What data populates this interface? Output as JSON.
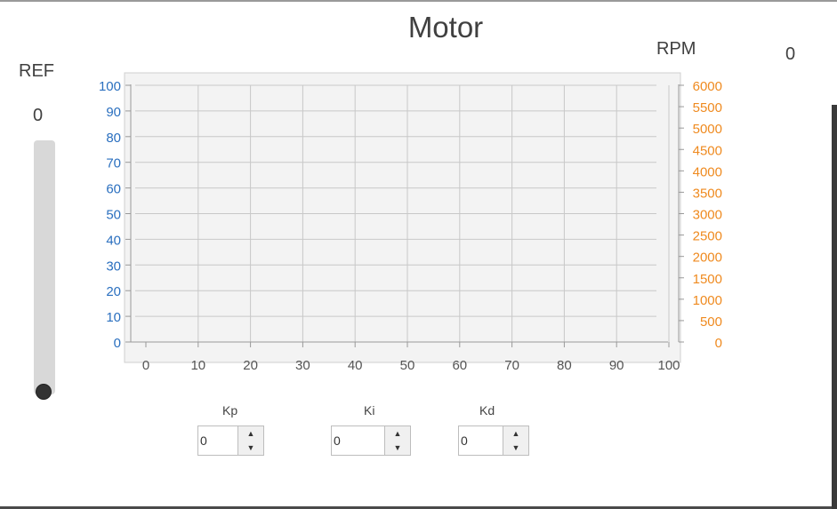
{
  "title": "Motor",
  "rpm": {
    "label": "RPM",
    "value": "0"
  },
  "ref": {
    "label": "REF",
    "value": "0",
    "slider_fraction": 0
  },
  "params": [
    {
      "label": "Kp",
      "value": "0"
    },
    {
      "label": "Ki",
      "value": "0"
    },
    {
      "label": "Kd",
      "value": "0"
    }
  ],
  "chart_data": {
    "type": "line",
    "x_ticks": [
      "0",
      "10",
      "20",
      "30",
      "40",
      "50",
      "60",
      "70",
      "80",
      "90",
      "100"
    ],
    "y_left_ticks": [
      "0",
      "10",
      "20",
      "30",
      "40",
      "50",
      "60",
      "70",
      "80",
      "90",
      "100"
    ],
    "y_right_ticks": [
      "0",
      "500",
      "1000",
      "1500",
      "2000",
      "2500",
      "3000",
      "3500",
      "4000",
      "4500",
      "5000",
      "5500",
      "6000"
    ],
    "xlim": [
      0,
      100
    ],
    "ylim_left": [
      0,
      100
    ],
    "ylim_right": [
      0,
      6000
    ],
    "grid": true,
    "series": [],
    "colors": {
      "left_axis": "#2a6fbf",
      "right_axis": "#ef8a1f",
      "plot_bg": "#f3f3f3",
      "grid": "#c8c8c8"
    }
  }
}
